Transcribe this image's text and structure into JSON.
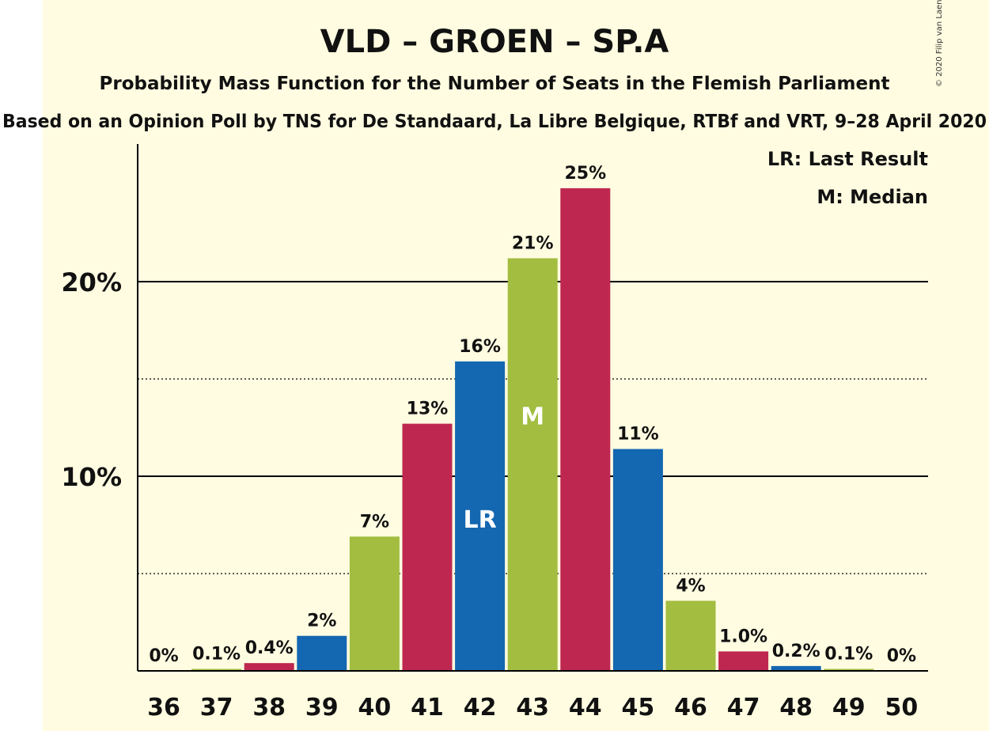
{
  "colors": {
    "background": "#FFFCE1",
    "blue": "#1467B1",
    "green": "#A2BD40",
    "red": "#BE2750"
  },
  "chart_data": {
    "type": "bar",
    "title": "VLD – GROEN – SP.A",
    "subtitle": "Probability Mass Function for the Number of Seats in the Flemish Parliament",
    "source": "Based on an Opinion Poll by TNS for De Standaard, La Libre Belgique, RTBf and VRT, 9–28 April 2020",
    "copyright": "© 2020 Filip van Laenen",
    "categories": [
      "36",
      "37",
      "38",
      "39",
      "40",
      "41",
      "42",
      "43",
      "44",
      "45",
      "46",
      "47",
      "48",
      "49",
      "50"
    ],
    "values": [
      0,
      0.1,
      0.4,
      1.8,
      6.9,
      12.7,
      15.9,
      21.2,
      24.8,
      11.4,
      3.6,
      1.0,
      0.25,
      0.1,
      0
    ],
    "data_labels": [
      "0%",
      "0.1%",
      "0.4%",
      "2%",
      "7%",
      "13%",
      "16%",
      "21%",
      "25%",
      "11%",
      "4%",
      "1.0%",
      "0.2%",
      "0.1%",
      "0%"
    ],
    "bar_colors": [
      "red",
      "green",
      "red",
      "blue",
      "green",
      "red",
      "blue",
      "green",
      "red",
      "blue",
      "green",
      "red",
      "blue",
      "green",
      "red"
    ],
    "ylim": [
      0,
      27
    ],
    "yticks": [
      {
        "value": 10,
        "label": "10%"
      },
      {
        "value": 20,
        "label": "20%"
      }
    ],
    "dotted_gridlines": [
      5,
      15
    ],
    "markers": [
      {
        "category": "42",
        "label": "LR"
      },
      {
        "category": "43",
        "label": "M"
      }
    ],
    "legend": {
      "position": "top-right",
      "entries": [
        "LR: Last Result",
        "M: Median"
      ]
    }
  }
}
